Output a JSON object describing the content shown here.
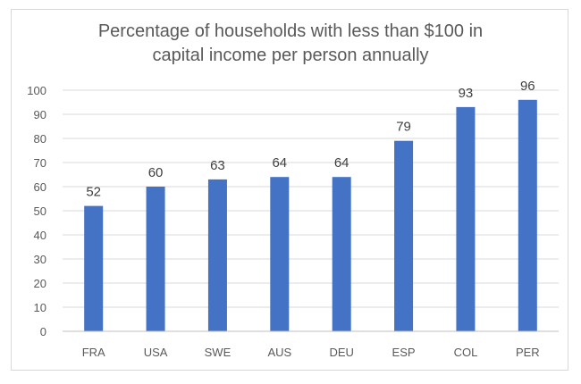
{
  "chart_data": {
    "type": "bar",
    "title_line1": "Percentage of households with less than $100 in",
    "title_line2": "capital income per person annually",
    "xlabel": "",
    "ylabel": "",
    "categories": [
      "FRA",
      "USA",
      "SWE",
      "AUS",
      "DEU",
      "ESP",
      "COL",
      "PER"
    ],
    "values": [
      52,
      60,
      63,
      64,
      64,
      79,
      93,
      96
    ],
    "ylim": [
      0,
      100
    ],
    "yticks": [
      0,
      10,
      20,
      30,
      40,
      50,
      60,
      70,
      80,
      90,
      100
    ],
    "grid": true,
    "legend": "none",
    "bar_color": "#4472c4",
    "grid_color": "#d9d9d9",
    "axis_color": "#bfbfbf"
  }
}
